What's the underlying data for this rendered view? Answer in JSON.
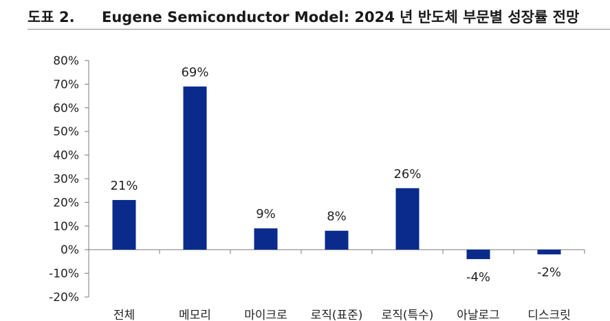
{
  "figure": {
    "label": "도표 2.",
    "title": "Eugene Semiconductor Model: 2024 년 반도체 부문별 성장률 전망"
  },
  "chart_data": {
    "type": "bar",
    "categories": [
      "전체",
      "메모리",
      "마이크로",
      "로직(표준)",
      "로직(특수)",
      "아날로그",
      "디스크릿"
    ],
    "values": [
      21,
      69,
      9,
      8,
      26,
      -4,
      -2
    ],
    "data_labels": [
      "21%",
      "69%",
      "9%",
      "8%",
      "26%",
      "-4%",
      "-2%"
    ],
    "ylim": [
      -20,
      80
    ],
    "yticks": [
      80,
      70,
      60,
      50,
      40,
      30,
      20,
      10,
      0,
      -10,
      -20
    ],
    "ytick_labels": [
      "80%",
      "70%",
      "60%",
      "50%",
      "40%",
      "30%",
      "20%",
      "10%",
      "0%",
      "-10%",
      "-20%"
    ],
    "bar_color": "#0a2a8c",
    "grid": false,
    "legend": "none"
  }
}
